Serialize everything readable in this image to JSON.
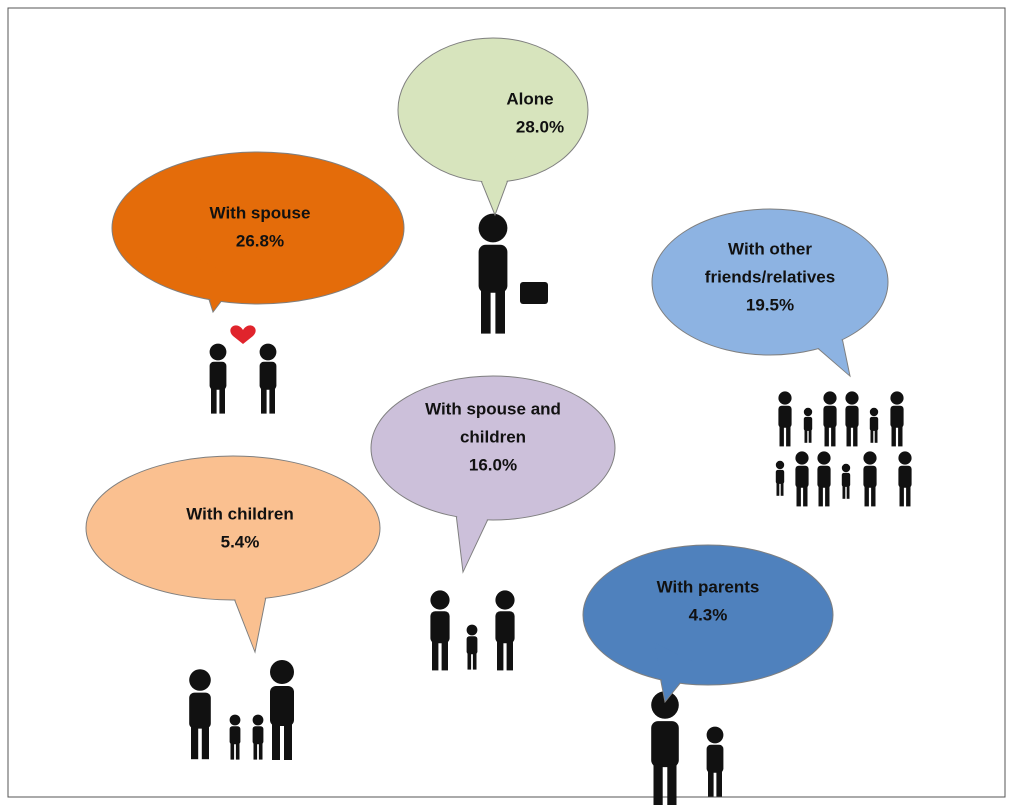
{
  "bubbles": [
    {
      "label": [
        "Alone"
      ],
      "value": "28.0%"
    },
    {
      "label": [
        "With spouse"
      ],
      "value": "26.8%"
    },
    {
      "label": [
        "With other",
        "friends/relatives"
      ],
      "value": "19.5%"
    },
    {
      "label": [
        "With spouse and",
        "children"
      ],
      "value": "16.0%"
    },
    {
      "label": [
        "With children"
      ],
      "value": "5.4%"
    },
    {
      "label": [
        "With parents"
      ],
      "value": "4.3%"
    }
  ]
}
